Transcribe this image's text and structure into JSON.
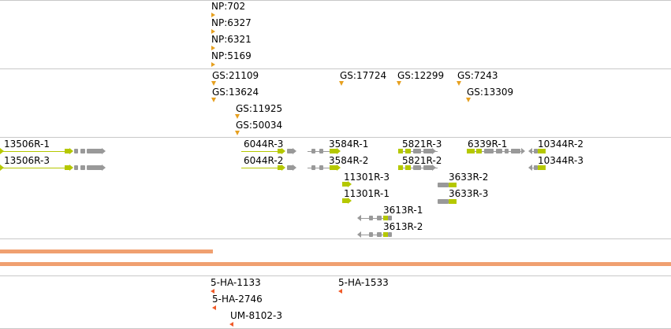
{
  "tracks": {
    "np": [
      "NP:702",
      "NP:6327",
      "NP:6321",
      "NP:5169"
    ],
    "gs": [
      "GS:21109",
      "GS:13624",
      "GS:11925",
      "GS:50034",
      "GS:17724",
      "GS:12299",
      "GS:7243",
      "GS:13309"
    ],
    "genes": [
      "13506R-1",
      "13506R-3",
      "6044R-3",
      "6044R-2",
      "3584R-1",
      "3584R-2",
      "11301R-3",
      "11301R-1",
      "3613R-1",
      "3613R-2",
      "5821R-3",
      "5821R-2",
      "3633R-2",
      "3633R-3",
      "6339R-1",
      "10344R-2",
      "10344R-3"
    ],
    "ha": [
      "5-HA-1133",
      "5-HA-2746",
      "UM-8102-3",
      "5-HA-1533"
    ]
  },
  "colors": {
    "marker_orange": "#e6a020",
    "marker_red": "#f05a28",
    "exon_yellow": "#b5c800",
    "exon_grey": "#999999",
    "coverage_bar": "#f0a070",
    "divider": "#c8c8c8"
  }
}
